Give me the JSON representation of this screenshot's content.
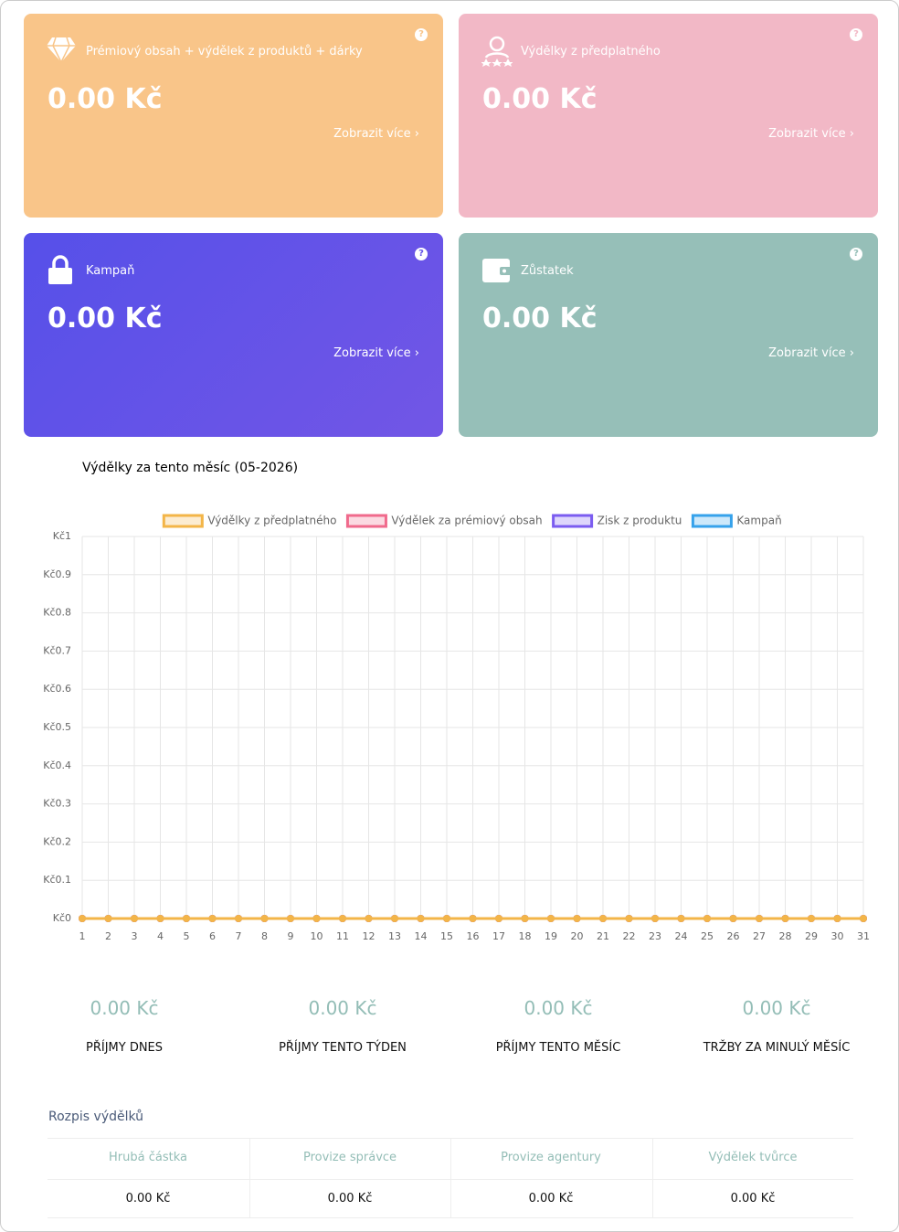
{
  "cards": [
    {
      "title": "Prémiový obsah + výdělek z produktů + dárky",
      "amount": "0.00 Kč",
      "link": "Zobrazit více"
    },
    {
      "title": "Výdělky z předplatného",
      "amount": "0.00 Kč",
      "link": "Zobrazit více"
    },
    {
      "title": "Kampaň",
      "amount": "0.00 Kč",
      "link": "Zobrazit více"
    },
    {
      "title": "Zůstatek",
      "amount": "0.00 Kč",
      "link": "Zobrazit více"
    }
  ],
  "chart_data": {
    "type": "line",
    "title": "Výdělky za tento měsíc (05-2026)",
    "categories": [
      "1",
      "2",
      "3",
      "4",
      "5",
      "6",
      "7",
      "8",
      "9",
      "10",
      "11",
      "12",
      "13",
      "14",
      "15",
      "16",
      "17",
      "18",
      "19",
      "20",
      "21",
      "22",
      "23",
      "24",
      "25",
      "26",
      "27",
      "28",
      "29",
      "30",
      "31"
    ],
    "series": [
      {
        "name": "Výdělky z předplatného",
        "color": "#f3b548",
        "values": [
          0,
          0,
          0,
          0,
          0,
          0,
          0,
          0,
          0,
          0,
          0,
          0,
          0,
          0,
          0,
          0,
          0,
          0,
          0,
          0,
          0,
          0,
          0,
          0,
          0,
          0,
          0,
          0,
          0,
          0,
          0
        ]
      },
      {
        "name": "Výdělek za prémiový obsah",
        "color": "#f06a8c",
        "values": [
          0,
          0,
          0,
          0,
          0,
          0,
          0,
          0,
          0,
          0,
          0,
          0,
          0,
          0,
          0,
          0,
          0,
          0,
          0,
          0,
          0,
          0,
          0,
          0,
          0,
          0,
          0,
          0,
          0,
          0,
          0
        ]
      },
      {
        "name": "Zisk z produktu",
        "color": "#7b5cf0",
        "values": [
          0,
          0,
          0,
          0,
          0,
          0,
          0,
          0,
          0,
          0,
          0,
          0,
          0,
          0,
          0,
          0,
          0,
          0,
          0,
          0,
          0,
          0,
          0,
          0,
          0,
          0,
          0,
          0,
          0,
          0,
          0
        ]
      },
      {
        "name": "Kampaň",
        "color": "#36a2eb",
        "values": [
          0,
          0,
          0,
          0,
          0,
          0,
          0,
          0,
          0,
          0,
          0,
          0,
          0,
          0,
          0,
          0,
          0,
          0,
          0,
          0,
          0,
          0,
          0,
          0,
          0,
          0,
          0,
          0,
          0,
          0,
          0
        ]
      }
    ],
    "ylim": [
      0,
      1
    ],
    "yticks": [
      {
        "value": 0,
        "label": "Kč0"
      },
      {
        "value": 0.1,
        "label": "Kč0.1"
      },
      {
        "value": 0.2,
        "label": "Kč0.2"
      },
      {
        "value": 0.3,
        "label": "Kč0.3"
      },
      {
        "value": 0.4,
        "label": "Kč0.4"
      },
      {
        "value": 0.5,
        "label": "Kč0.5"
      },
      {
        "value": 0.6,
        "label": "Kč0.6"
      },
      {
        "value": 0.7,
        "label": "Kč0.7"
      },
      {
        "value": 0.8,
        "label": "Kč0.8"
      },
      {
        "value": 0.9,
        "label": "Kč0.9"
      },
      {
        "value": 1,
        "label": "Kč1"
      }
    ],
    "grid": true,
    "legend": "top"
  },
  "stats": [
    {
      "value": "0.00 Kč",
      "label": "PŘÍJMY DNES"
    },
    {
      "value": "0.00 Kč",
      "label": "PŘÍJMY TENTO TÝDEN"
    },
    {
      "value": "0.00 Kč",
      "label": "PŘÍJMY TENTO MĚSÍC"
    },
    {
      "value": "0.00 Kč",
      "label": "TRŽBY ZA MINULÝ MĚSÍC"
    }
  ],
  "breakdown": {
    "title": "Rozpis výdělků",
    "columns": [
      "Hrubá částka",
      "Provize správce",
      "Provize agentury",
      "Výdělek tvůrce"
    ],
    "rows": [
      [
        "0.00 Kč",
        "0.00 Kč",
        "0.00 Kč",
        "0.00 Kč"
      ]
    ]
  }
}
